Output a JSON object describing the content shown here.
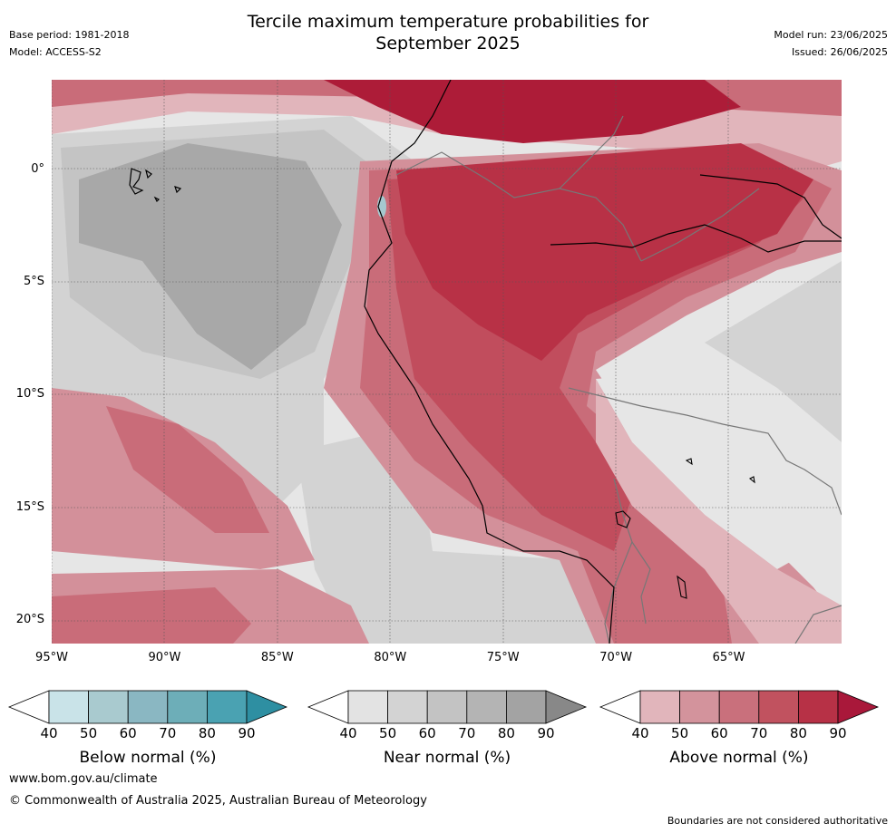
{
  "header": {
    "title_line1": "Tercile maximum temperature probabilities for",
    "title_line2": "September 2025",
    "base_period": "Base period: 1981-2018",
    "model": "Model: ACCESS-S2",
    "model_run": "Model run: 23/06/2025",
    "issued": "Issued: 26/06/2025"
  },
  "map": {
    "lat_ticks": [
      "0°",
      "5°S",
      "10°S",
      "15°S",
      "20°S"
    ],
    "lon_ticks": [
      "95°W",
      "90°W",
      "85°W",
      "80°W",
      "75°W",
      "70°W",
      "65°W"
    ],
    "lat_values": [
      0,
      -5,
      -10,
      -15,
      -20
    ],
    "lon_values": [
      -95,
      -90,
      -85,
      -80,
      -75,
      -70,
      -65
    ],
    "extent": {
      "lon": [
        -95,
        -60
      ],
      "lat": [
        -21,
        4
      ]
    },
    "colors": {
      "near_light": "#e6e6e6",
      "near_mid": "#d3d3d3",
      "near_dark": "#c4c4c4",
      "near_darkest": "#a8a8a8",
      "above_40": "#e1b5bb",
      "above_50": "#d3909a",
      "above_60": "#c96c79",
      "above_70": "#c14d5d",
      "above_80": "#b83146",
      "above_90": "#ad1c38",
      "below_50": "#a5c8cf"
    }
  },
  "colorbars": [
    {
      "name": "below",
      "label": "Below normal (%)",
      "ticks": [
        "40",
        "50",
        "60",
        "70",
        "80",
        "90"
      ],
      "colors": [
        "#c9e3e8",
        "#a9cacf",
        "#8ab7c2",
        "#6daeb8",
        "#4aa2b2",
        "#2e8fa2"
      ]
    },
    {
      "name": "near",
      "label": "Near normal (%)",
      "ticks": [
        "40",
        "50",
        "60",
        "70",
        "80",
        "90"
      ],
      "colors": [
        "#e3e3e3",
        "#d3d3d3",
        "#c3c3c3",
        "#b4b4b4",
        "#a3a3a3",
        "#888888"
      ]
    },
    {
      "name": "above",
      "label": "Above normal (%)",
      "ticks": [
        "40",
        "50",
        "60",
        "70",
        "80",
        "90"
      ],
      "colors": [
        "#e1b5bb",
        "#d3939c",
        "#c9707c",
        "#c1525f",
        "#b73146",
        "#a9183a"
      ]
    }
  ],
  "footer": {
    "url": "www.bom.gov.au/climate",
    "copyright": "© Commonwealth of Australia 2025, Australian Bureau of Meteorology",
    "disclaimer": "Boundaries are not considered authoritative"
  }
}
